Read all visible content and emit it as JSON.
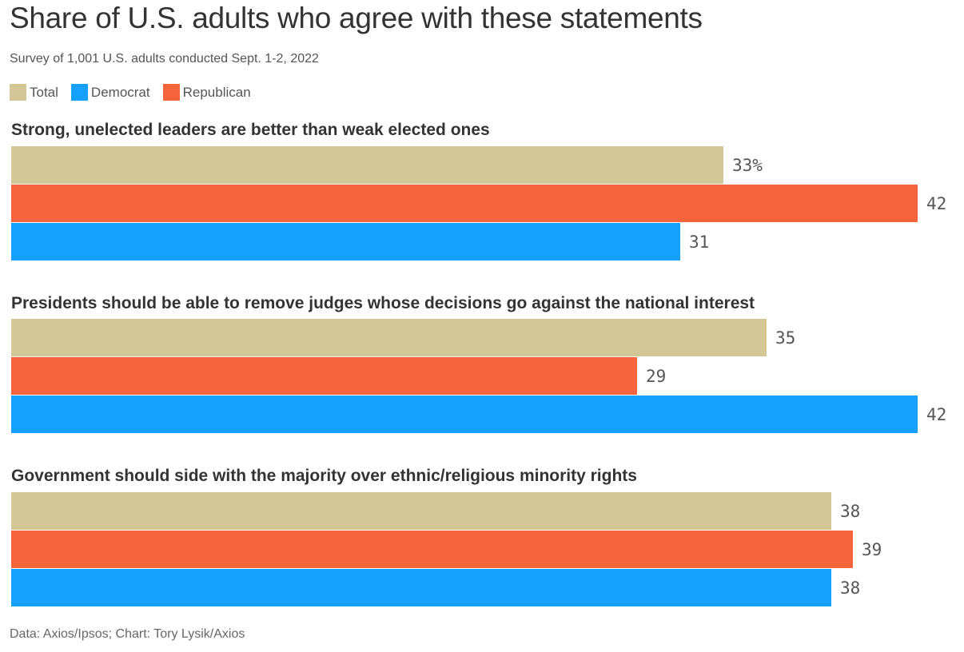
{
  "chart_data": {
    "type": "bar",
    "orientation": "horizontal",
    "title": "Share of U.S. adults who agree with these statements",
    "subtitle": "Survey of 1,001 U.S. adults conducted Sept. 1-2, 2022",
    "source": "Data: Axios/Ipsos; Chart: Tory Lysik/Axios",
    "legend": [
      {
        "name": "Total",
        "color": "#d3c797"
      },
      {
        "name": "Democrat",
        "color": "#15a1fb"
      },
      {
        "name": "Republican",
        "color": "#f6643d"
      }
    ],
    "xlim": [
      0,
      42
    ],
    "groups": [
      {
        "title": "Strong, unelected leaders are better than weak elected ones",
        "bars": [
          {
            "series": "Total",
            "value": 33,
            "label": "33%"
          },
          {
            "series": "Republican",
            "value": 42,
            "label": "42"
          },
          {
            "series": "Democrat",
            "value": 31,
            "label": "31"
          }
        ]
      },
      {
        "title": "Presidents should be able to remove judges whose decisions go against the national interest",
        "bars": [
          {
            "series": "Total",
            "value": 35,
            "label": "35"
          },
          {
            "series": "Republican",
            "value": 29,
            "label": "29"
          },
          {
            "series": "Democrat",
            "value": 42,
            "label": "42"
          }
        ]
      },
      {
        "title": "Government should side with the majority over ethnic/religious minority rights",
        "bars": [
          {
            "series": "Total",
            "value": 38,
            "label": "38"
          },
          {
            "series": "Republican",
            "value": 39,
            "label": "39"
          },
          {
            "series": "Democrat",
            "value": 38,
            "label": "38"
          }
        ]
      }
    ]
  }
}
